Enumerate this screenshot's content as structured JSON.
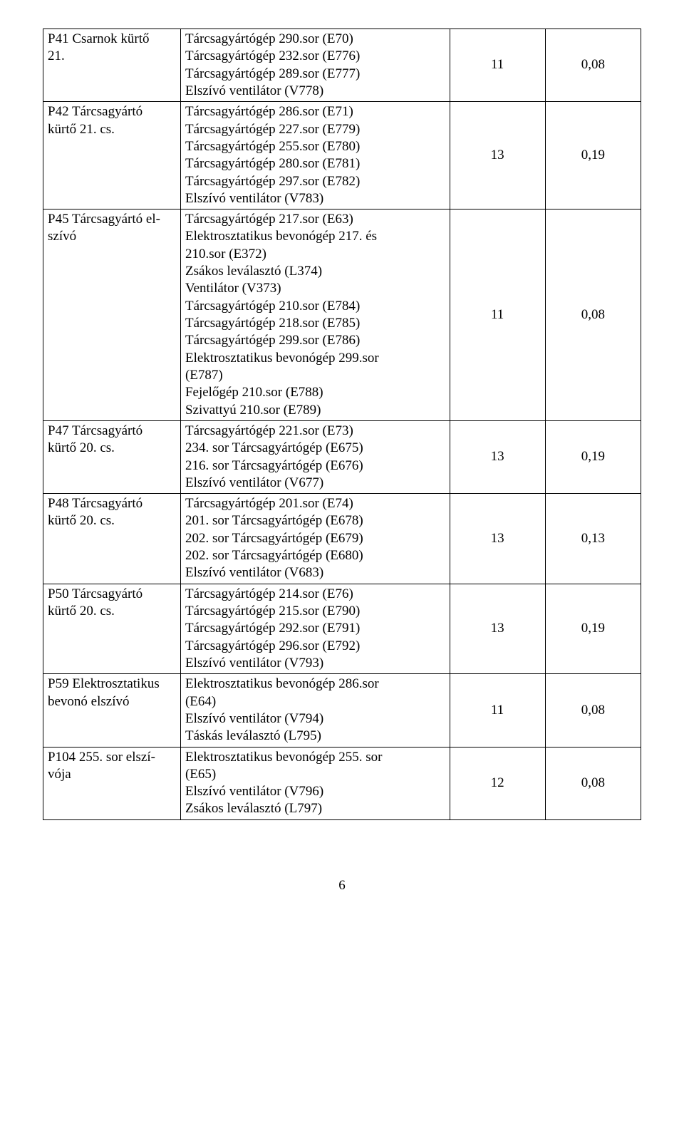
{
  "pageNumber": "6",
  "rows": [
    {
      "col1": [
        "P41 Csarnok kürtő",
        "21."
      ],
      "col2": [
        "Tárcsagyártógép 290.sor (E70)",
        "Tárcsagyártógép 232.sor (E776)",
        "Tárcsagyártógép 289.sor (E777)",
        "Elszívó ventilátor (V778)"
      ],
      "col3": "11",
      "col4": "0,08"
    },
    {
      "col1": [
        "P42 Tárcsagyártó",
        "kürtő 21. cs."
      ],
      "col2": [
        "Tárcsagyártógép 286.sor (E71)",
        "Tárcsagyártógép 227.sor (E779)",
        "Tárcsagyártógép 255.sor (E780)",
        "Tárcsagyártógép 280.sor (E781)",
        "Tárcsagyártógép 297.sor (E782)",
        "Elszívó ventilátor (V783)"
      ],
      "col3": "13",
      "col4": "0,19"
    },
    {
      "col1": [
        "P45 Tárcsagyártó el-",
        "szívó"
      ],
      "col2": [
        "Tárcsagyártógép 217.sor (E63)",
        "Elektrosztatikus bevonógép 217. és",
        "210.sor (E372)",
        "Zsákos leválasztó (L374)",
        "Ventilátor (V373)",
        "Tárcsagyártógép 210.sor (E784)",
        "Tárcsagyártógép 218.sor (E785)",
        "Tárcsagyártógép 299.sor (E786)",
        "Elektrosztatikus bevonógép 299.sor",
        "(E787)",
        "Fejelőgép 210.sor (E788)",
        "Szivattyú 210.sor (E789)"
      ],
      "col3": "11",
      "col4": "0,08"
    },
    {
      "col1": [
        "P47 Tárcsagyártó",
        "kürtő 20. cs."
      ],
      "col2": [
        "Tárcsagyártógép 221.sor (E73)",
        "234. sor Tárcsagyártógép (E675)",
        "216. sor Tárcsagyártógép (E676)",
        "Elszívó ventilátor (V677)"
      ],
      "col3": "13",
      "col4": "0,19"
    },
    {
      "col1": [
        "P48 Tárcsagyártó",
        "kürtő 20. cs."
      ],
      "col2": [
        "Tárcsagyártógép 201.sor (E74)",
        "201. sor Tárcsagyártógép (E678)",
        "202. sor Tárcsagyártógép (E679)",
        "202. sor Tárcsagyártógép (E680)",
        "Elszívó ventilátor (V683)"
      ],
      "col3": "13",
      "col4": "0,13"
    },
    {
      "col1": [
        "P50 Tárcsagyártó",
        "kürtő 20. cs."
      ],
      "col2": [
        "Tárcsagyártógép 214.sor (E76)",
        "Tárcsagyártógép 215.sor (E790)",
        "Tárcsagyártógép 292.sor (E791)",
        "Tárcsagyártógép 296.sor (E792)",
        "Elszívó ventilátor (V793)"
      ],
      "col3": "13",
      "col4": "0,19"
    },
    {
      "col1": [
        "P59 Elektrosztatikus",
        "bevonó elszívó"
      ],
      "col2": [
        "Elektrosztatikus bevonógép 286.sor",
        "(E64)",
        "Elszívó ventilátor (V794)",
        "Táskás leválasztó (L795)"
      ],
      "col3": "11",
      "col4": "0,08"
    },
    {
      "col1": [
        "P104 255. sor elszí-",
        "vója"
      ],
      "col2": [
        "Elektrosztatikus bevonógép 255. sor",
        "(E65)",
        "Elszívó ventilátor (V796)",
        "Zsákos leválasztó (L797)"
      ],
      "col3": "12",
      "col4": "0,08"
    }
  ]
}
